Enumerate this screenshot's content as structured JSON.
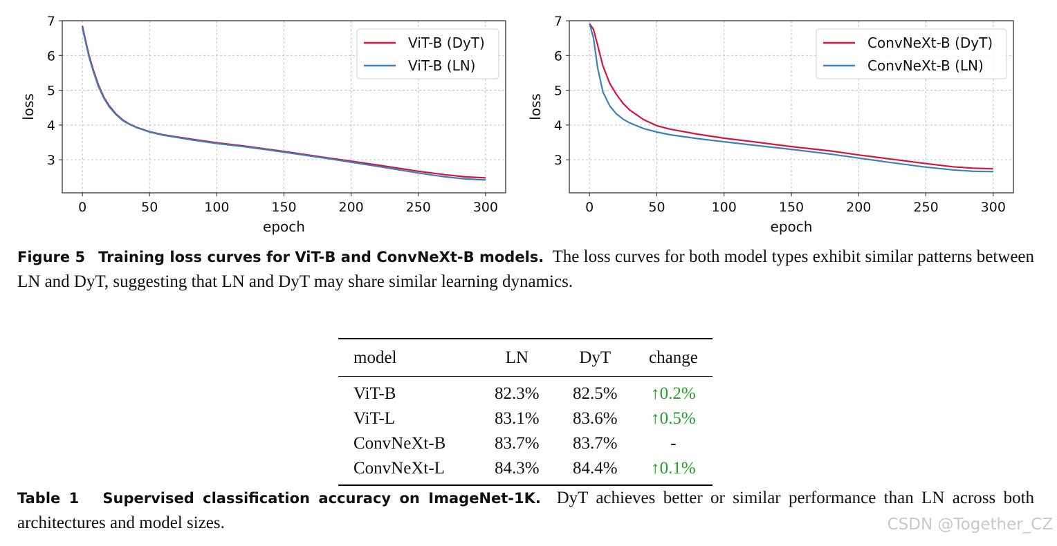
{
  "chart_data": [
    {
      "type": "line",
      "title": "",
      "xlabel": "epoch",
      "ylabel": "loss",
      "xlim": [
        -15,
        315
      ],
      "ylim": [
        2.05,
        7.0
      ],
      "xticks": [
        0,
        50,
        100,
        150,
        200,
        250,
        300
      ],
      "yticks": [
        3,
        4,
        5,
        6,
        7
      ],
      "grid": true,
      "legend_position": "top-right",
      "series": [
        {
          "name": "ViT-B (DyT)",
          "color": "#d6133c",
          "x": [
            0,
            2,
            5,
            8,
            12,
            16,
            20,
            25,
            30,
            35,
            40,
            50,
            60,
            80,
            100,
            120,
            150,
            180,
            200,
            220,
            250,
            270,
            285,
            300
          ],
          "y": [
            6.85,
            6.5,
            6.0,
            5.6,
            5.15,
            4.8,
            4.55,
            4.32,
            4.15,
            4.03,
            3.94,
            3.81,
            3.72,
            3.6,
            3.49,
            3.4,
            3.24,
            3.07,
            2.96,
            2.85,
            2.67,
            2.57,
            2.51,
            2.48
          ]
        },
        {
          "name": "ViT-B (LN)",
          "color": "#3d7fba",
          "x": [
            0,
            2,
            5,
            8,
            12,
            16,
            20,
            25,
            30,
            35,
            40,
            50,
            60,
            80,
            100,
            120,
            150,
            180,
            200,
            220,
            250,
            270,
            285,
            300
          ],
          "y": [
            6.8,
            6.45,
            5.95,
            5.55,
            5.1,
            4.77,
            4.52,
            4.3,
            4.13,
            4.02,
            3.93,
            3.8,
            3.71,
            3.58,
            3.47,
            3.38,
            3.22,
            3.05,
            2.93,
            2.81,
            2.62,
            2.51,
            2.45,
            2.42
          ]
        }
      ]
    },
    {
      "type": "line",
      "title": "",
      "xlabel": "epoch",
      "ylabel": "loss",
      "xlim": [
        -15,
        315
      ],
      "ylim": [
        2.05,
        7.0
      ],
      "xticks": [
        0,
        50,
        100,
        150,
        200,
        250,
        300
      ],
      "yticks": [
        3,
        4,
        5,
        6,
        7
      ],
      "grid": true,
      "legend_position": "top-right",
      "series": [
        {
          "name": "ConvNeXt-B (DyT)",
          "color": "#d6133c",
          "x": [
            0,
            3,
            6,
            10,
            15,
            20,
            25,
            30,
            40,
            50,
            60,
            80,
            100,
            120,
            150,
            180,
            200,
            220,
            250,
            270,
            285,
            300
          ],
          "y": [
            6.92,
            6.75,
            6.3,
            5.7,
            5.2,
            4.88,
            4.62,
            4.43,
            4.16,
            3.98,
            3.88,
            3.74,
            3.62,
            3.53,
            3.38,
            3.25,
            3.14,
            3.04,
            2.89,
            2.8,
            2.76,
            2.74
          ]
        },
        {
          "name": "ConvNeXt-B (LN)",
          "color": "#3d7fba",
          "x": [
            0,
            3,
            6,
            10,
            15,
            20,
            25,
            30,
            40,
            50,
            60,
            80,
            100,
            120,
            150,
            180,
            200,
            220,
            250,
            270,
            285,
            300
          ],
          "y": [
            6.92,
            6.5,
            5.65,
            4.95,
            4.55,
            4.32,
            4.17,
            4.06,
            3.9,
            3.8,
            3.72,
            3.61,
            3.52,
            3.43,
            3.3,
            3.16,
            3.05,
            2.94,
            2.79,
            2.71,
            2.67,
            2.66
          ]
        }
      ]
    }
  ],
  "figure_caption": {
    "label": "Figure 5",
    "title": "Training loss curves for ViT-B and ConvNeXt-B models.",
    "text": "The loss curves for both model types exhibit similar patterns between LN and DyT, suggesting that LN and DyT may share similar learning dynamics."
  },
  "table": {
    "headers": [
      "model",
      "LN",
      "DyT",
      "change"
    ],
    "rows": [
      [
        "ViT-B",
        "82.3%",
        "82.5%",
        "↑0.2%"
      ],
      [
        "ViT-L",
        "83.1%",
        "83.6%",
        "↑0.5%"
      ],
      [
        "ConvNeXt-B",
        "83.7%",
        "83.7%",
        "-"
      ],
      [
        "ConvNeXt-L",
        "84.3%",
        "84.4%",
        "↑0.1%"
      ]
    ]
  },
  "table_caption": {
    "label": "Table 1",
    "title": "Supervised classification accuracy on ImageNet-1K.",
    "text": "DyT achieves better or similar performance than LN across both architectures and model sizes."
  },
  "watermark": "CSDN @Together_CZ"
}
